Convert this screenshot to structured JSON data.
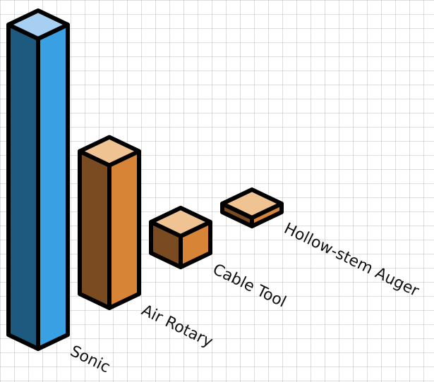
{
  "chart_data": {
    "type": "bar",
    "categories": [
      "Sonic",
      "Air Rotary",
      "Cable Tool",
      "Hollow-stem Auger"
    ],
    "values": [
      100,
      46,
      10,
      2
    ],
    "highlight_index": 0,
    "title": "",
    "xlabel": "",
    "ylabel": "",
    "ylim": [
      0,
      100
    ],
    "grid": true,
    "legend": "none",
    "colors": {
      "highlight": {
        "top": "#a6cff1",
        "left": "#1e5a80",
        "right": "#3aa0e4"
      },
      "default": {
        "top": "#efc392",
        "left": "#7a4b21",
        "right": "#d88436"
      },
      "outline": "#000000"
    }
  }
}
